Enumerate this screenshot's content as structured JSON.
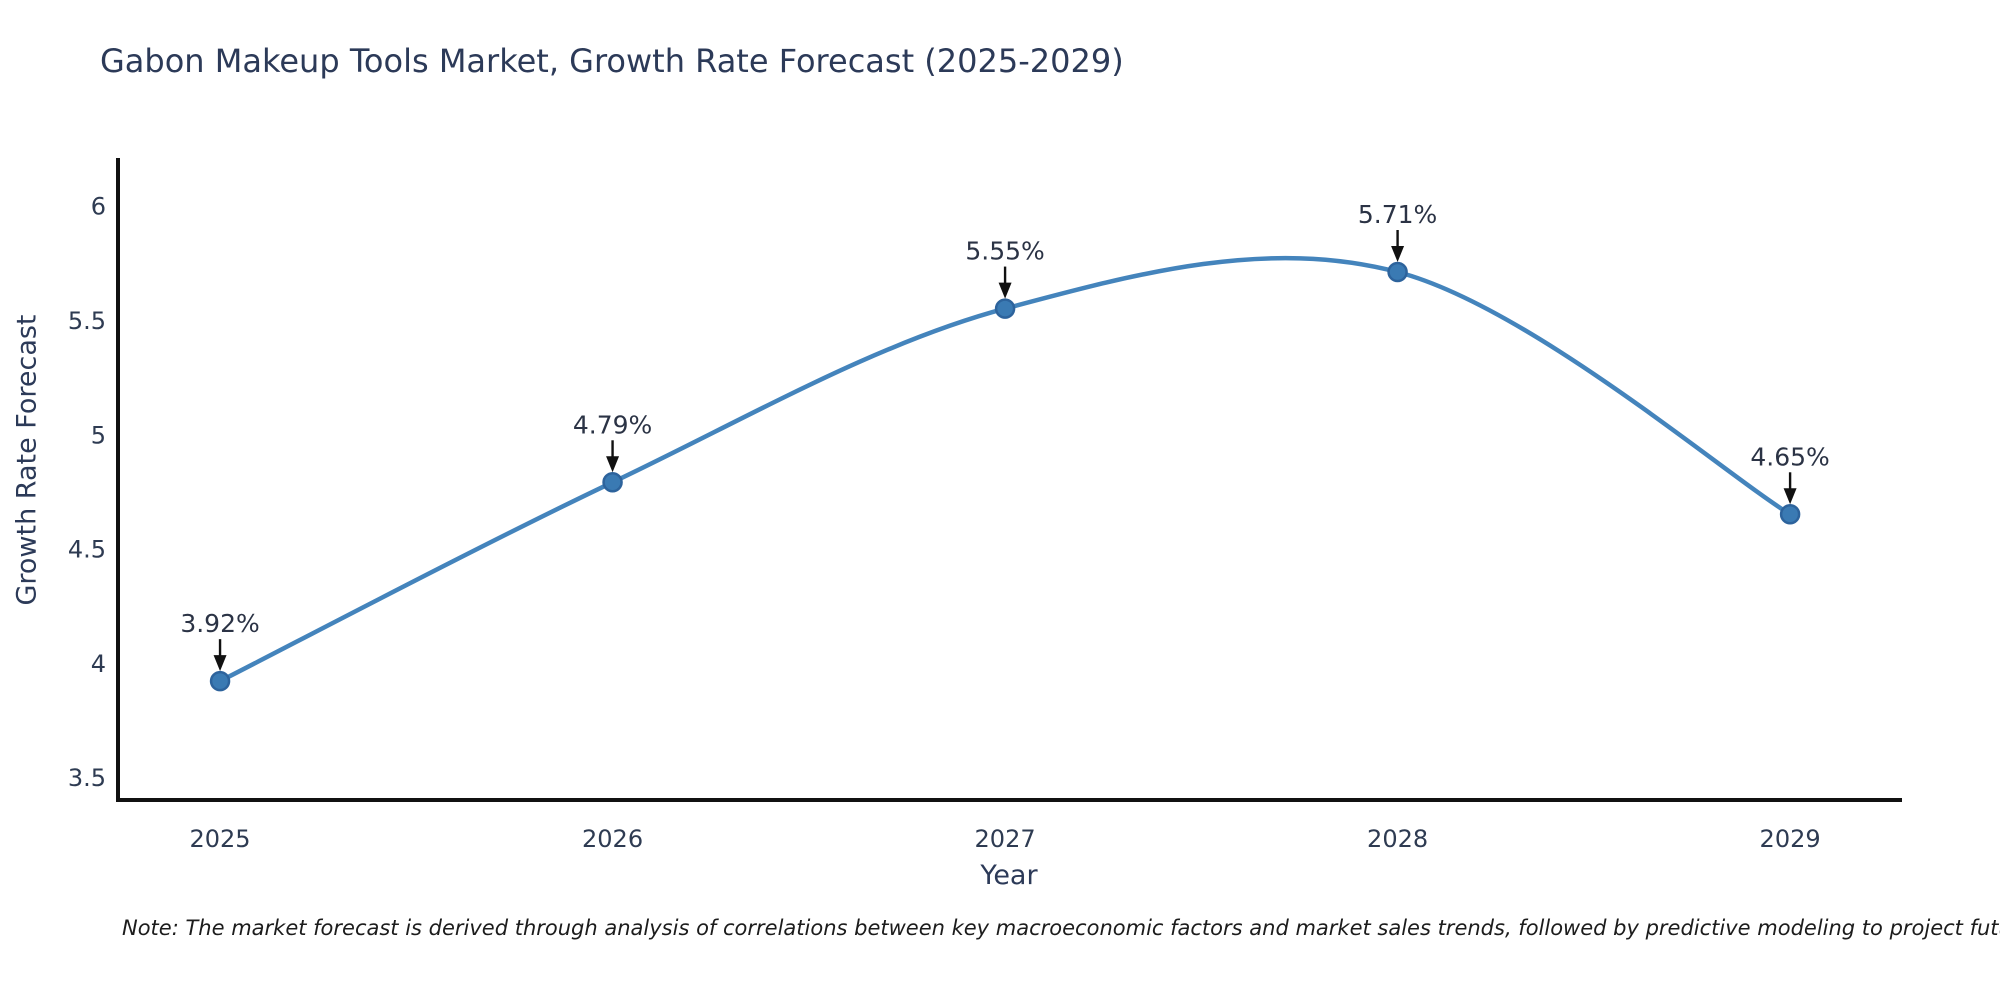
{
  "chart": {
    "title": "Gabon Makeup Tools Market, Growth Rate Forecast (2025-2029)",
    "xlabel": "Year",
    "ylabel": "Growth Rate Forecast",
    "note": "Note: The market forecast is derived through analysis of correlations between key macroeconomic factors and market sales trends, followed by predictive modeling to project future sales"
  },
  "chart_data": {
    "type": "line",
    "title": "Gabon Makeup Tools Market, Growth Rate Forecast (2025-2029)",
    "xlabel": "Year",
    "ylabel": "Growth Rate Forecast",
    "x": [
      2025,
      2026,
      2027,
      2028,
      2029
    ],
    "values": [
      3.92,
      4.79,
      5.55,
      5.71,
      4.65
    ],
    "point_labels": [
      "3.92%",
      "4.79%",
      "5.55%",
      "5.71%",
      "4.65%"
    ],
    "xticks": [
      2025,
      2026,
      2027,
      2028,
      2029
    ],
    "xtick_labels": [
      "2025",
      "2026",
      "2027",
      "2028",
      "2029"
    ],
    "yticks": [
      3.5,
      4,
      4.5,
      5,
      5.5,
      6
    ],
    "ytick_labels": [
      "3.5",
      "4",
      "4.5",
      "5",
      "5.5",
      "6"
    ],
    "xlim": [
      2024.74,
      2029.28
    ],
    "ylim": [
      3.4,
      6.2
    ],
    "grid": false,
    "legend": "none",
    "line_shape": "spline",
    "colors": {
      "line": "#4484bc",
      "marker_fill": "#3a7ab3",
      "marker_edge": "#2d639c",
      "axis_line": "#111111",
      "tick_text": "#2e3b52",
      "annotation_text": "#2b3345",
      "arrow": "#111111",
      "background": "#ffffff"
    }
  }
}
